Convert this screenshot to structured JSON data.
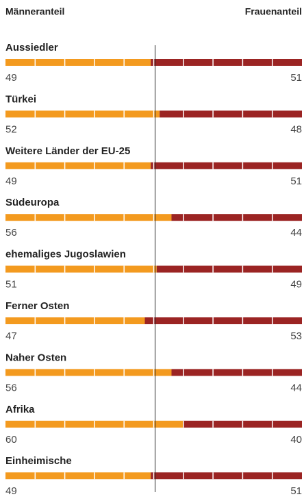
{
  "chart_data": {
    "type": "bar",
    "orientation": "horizontal",
    "stacked": true,
    "categories": [
      "Aussiedler",
      "Türkei",
      "Weitere Länder der EU-25",
      "Südeuropa",
      "ehemaliges Jugoslawien",
      "Ferner Osten",
      "Naher Osten",
      "Afrika",
      "Einheimische"
    ],
    "series": [
      {
        "name": "Männeranteil",
        "color": "#f39a1f",
        "values": [
          49,
          52,
          49,
          56,
          51,
          47,
          56,
          60,
          49
        ]
      },
      {
        "name": "Frauenanteil",
        "color": "#9b2423",
        "values": [
          51,
          48,
          51,
          44,
          49,
          53,
          44,
          40,
          51
        ]
      }
    ],
    "xlim": [
      0,
      100
    ]
  }
}
